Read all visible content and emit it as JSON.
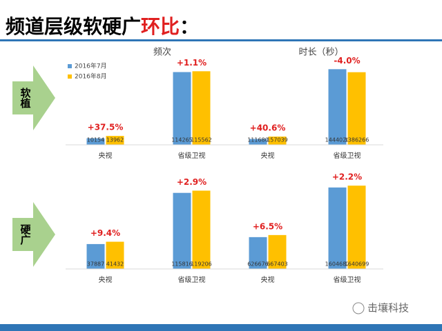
{
  "slide": {
    "title": "频道层级软硬广",
    "title_highlight": "环比",
    "title_colon": "：",
    "row_labels": [
      "软植",
      "硬广"
    ],
    "footer": "击壤科技"
  },
  "chart_data": [
    {
      "type": "bar",
      "title": "频次",
      "categories": [
        "央视",
        "省级卫视"
      ],
      "series": [
        {
          "name": "2016年7月",
          "color": "#5b9bd5",
          "values": [
            10154,
            114265
          ]
        },
        {
          "name": "2016年8月",
          "color": "#ffc000",
          "values": [
            13962,
            115562
          ]
        }
      ],
      "annotations": [
        "+37.5%",
        "+1.1%"
      ],
      "ylim": [
        0,
        130000
      ]
    },
    {
      "type": "bar",
      "title": "时长（秒）",
      "categories": [
        "央视",
        "省级卫视"
      ],
      "series": [
        {
          "color": "#5b9bd5",
          "values": [
            111680,
            1444020
          ]
        },
        {
          "color": "#ffc000",
          "values": [
            157039,
            1386266
          ]
        }
      ],
      "annotations": [
        "+40.6%",
        "-4.0%"
      ],
      "ylim": [
        0,
        1580000
      ]
    },
    {
      "type": "bar",
      "categories": [
        "央视",
        "省级卫视"
      ],
      "series": [
        {
          "color": "#5b9bd5",
          "values": [
            37887,
            115816
          ]
        },
        {
          "color": "#ffc000",
          "values": [
            41432,
            119206
          ]
        }
      ],
      "annotations": [
        "+9.4%",
        "+2.9%"
      ],
      "ylim": [
        0,
        126000
      ]
    },
    {
      "type": "bar",
      "categories": [
        "央视",
        "省级卫视"
      ],
      "series": [
        {
          "color": "#5b9bd5",
          "values": [
            626676,
            1604682
          ]
        },
        {
          "color": "#ffc000",
          "values": [
            667403,
            1640699
          ]
        }
      ],
      "annotations": [
        "+6.5%",
        "+2.2%"
      ],
      "ylim": [
        0,
        1630000
      ]
    }
  ]
}
